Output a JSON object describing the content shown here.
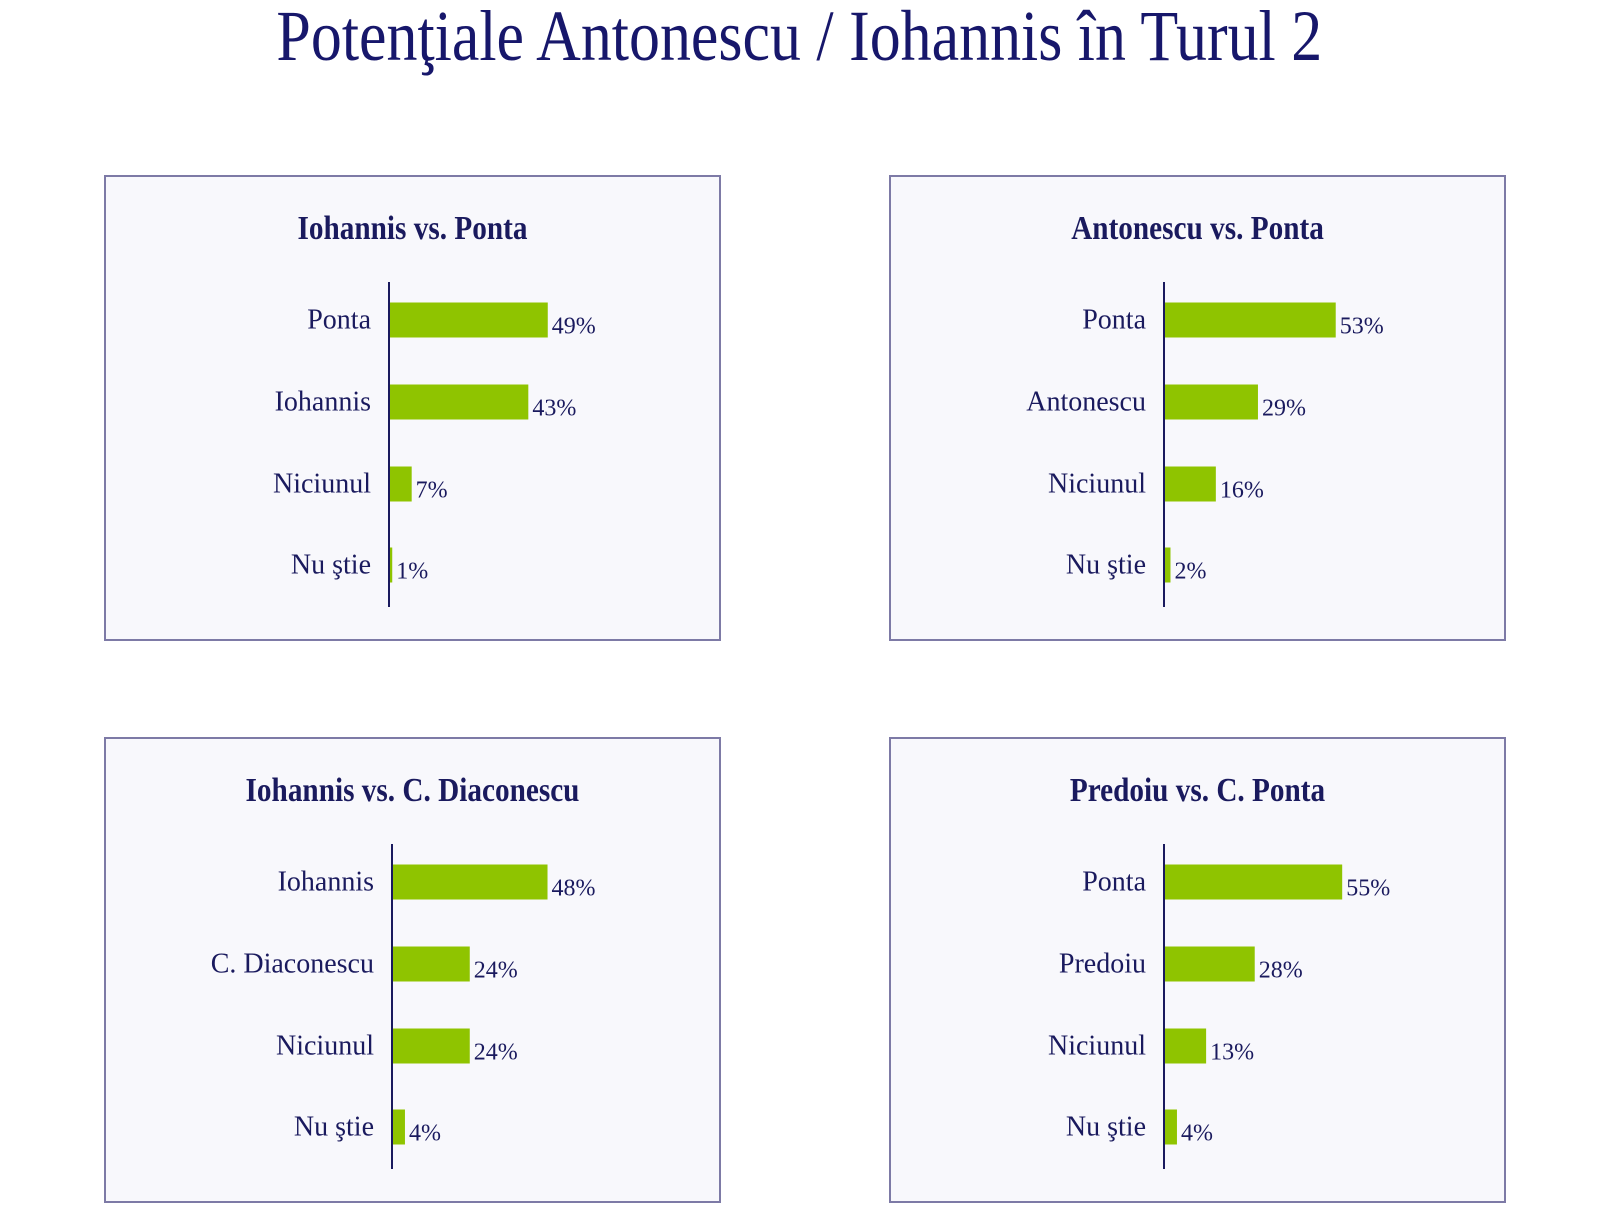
{
  "page": {
    "title": "Potenţiale Antonescu / Iohannis în Turul 2"
  },
  "colors": {
    "bar": "#8fc400",
    "axis": "#1a1a5e",
    "text": "#1a1a5e"
  },
  "chart_data": [
    {
      "type": "bar",
      "orientation": "horizontal",
      "title": "Iohannis vs. Ponta",
      "categories": [
        "Ponta",
        "Iohannis",
        "Niciunul",
        "Nu ştie"
      ],
      "values": [
        49,
        43,
        7,
        1
      ],
      "data_labels": [
        "49%",
        "43%",
        "7%",
        "1%"
      ]
    },
    {
      "type": "bar",
      "orientation": "horizontal",
      "title": "Antonescu vs. Ponta",
      "categories": [
        "Ponta",
        "Antonescu",
        "Niciunul",
        "Nu ştie"
      ],
      "values": [
        53,
        29,
        16,
        2
      ],
      "data_labels": [
        "53%",
        "29%",
        "16%",
        "2%"
      ]
    },
    {
      "type": "bar",
      "orientation": "horizontal",
      "title": "Iohannis vs. C. Diaconescu",
      "categories": [
        "Iohannis",
        "C. Diaconescu",
        "Niciunul",
        "Nu ştie"
      ],
      "values": [
        48,
        24,
        24,
        4
      ],
      "data_labels": [
        "48%",
        "24%",
        "24%",
        "4%"
      ]
    },
    {
      "type": "bar",
      "orientation": "horizontal",
      "title": "Predoiu vs. C. Ponta",
      "categories": [
        "Ponta",
        "Predoiu",
        "Niciunul",
        "Nu ştie"
      ],
      "values": [
        55,
        28,
        13,
        4
      ],
      "data_labels": [
        "55%",
        "28%",
        "13%",
        "4%"
      ]
    }
  ]
}
